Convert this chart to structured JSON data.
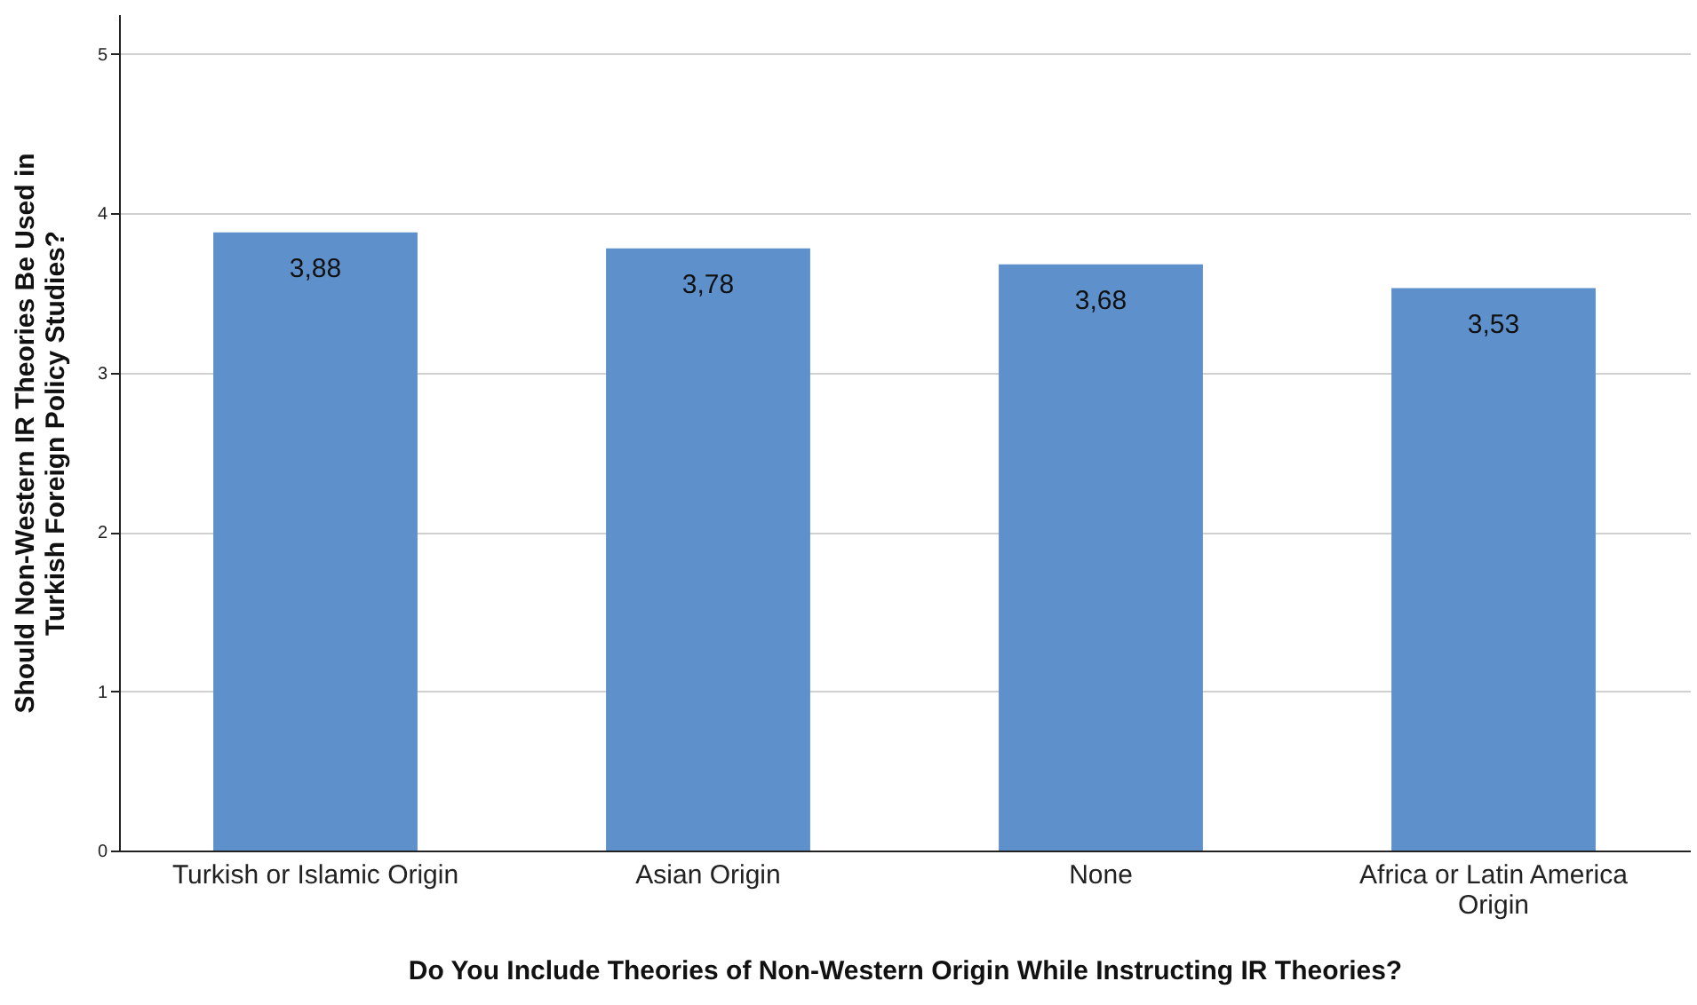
{
  "chart_data": {
    "type": "bar",
    "xlabel": "Do You Include Theories of Non-Western Origin While Instructing IR Theories?",
    "ylabel": "Should Non-Western IR Theories Be Used in Turkish Foreign Policy Studies?",
    "categories": [
      "Turkish or Islamic Origin",
      "Asian Origin",
      "None",
      "Africa or Latin America Origin"
    ],
    "values": [
      3.88,
      3.78,
      3.68,
      3.53
    ],
    "value_labels": [
      "3,88",
      "3,78",
      "3,68",
      "3,53"
    ],
    "color": "#5e91cc",
    "ylim": [
      0,
      5.25
    ],
    "yticks": [
      0,
      1,
      2,
      3,
      4,
      5
    ],
    "grid": "y"
  }
}
